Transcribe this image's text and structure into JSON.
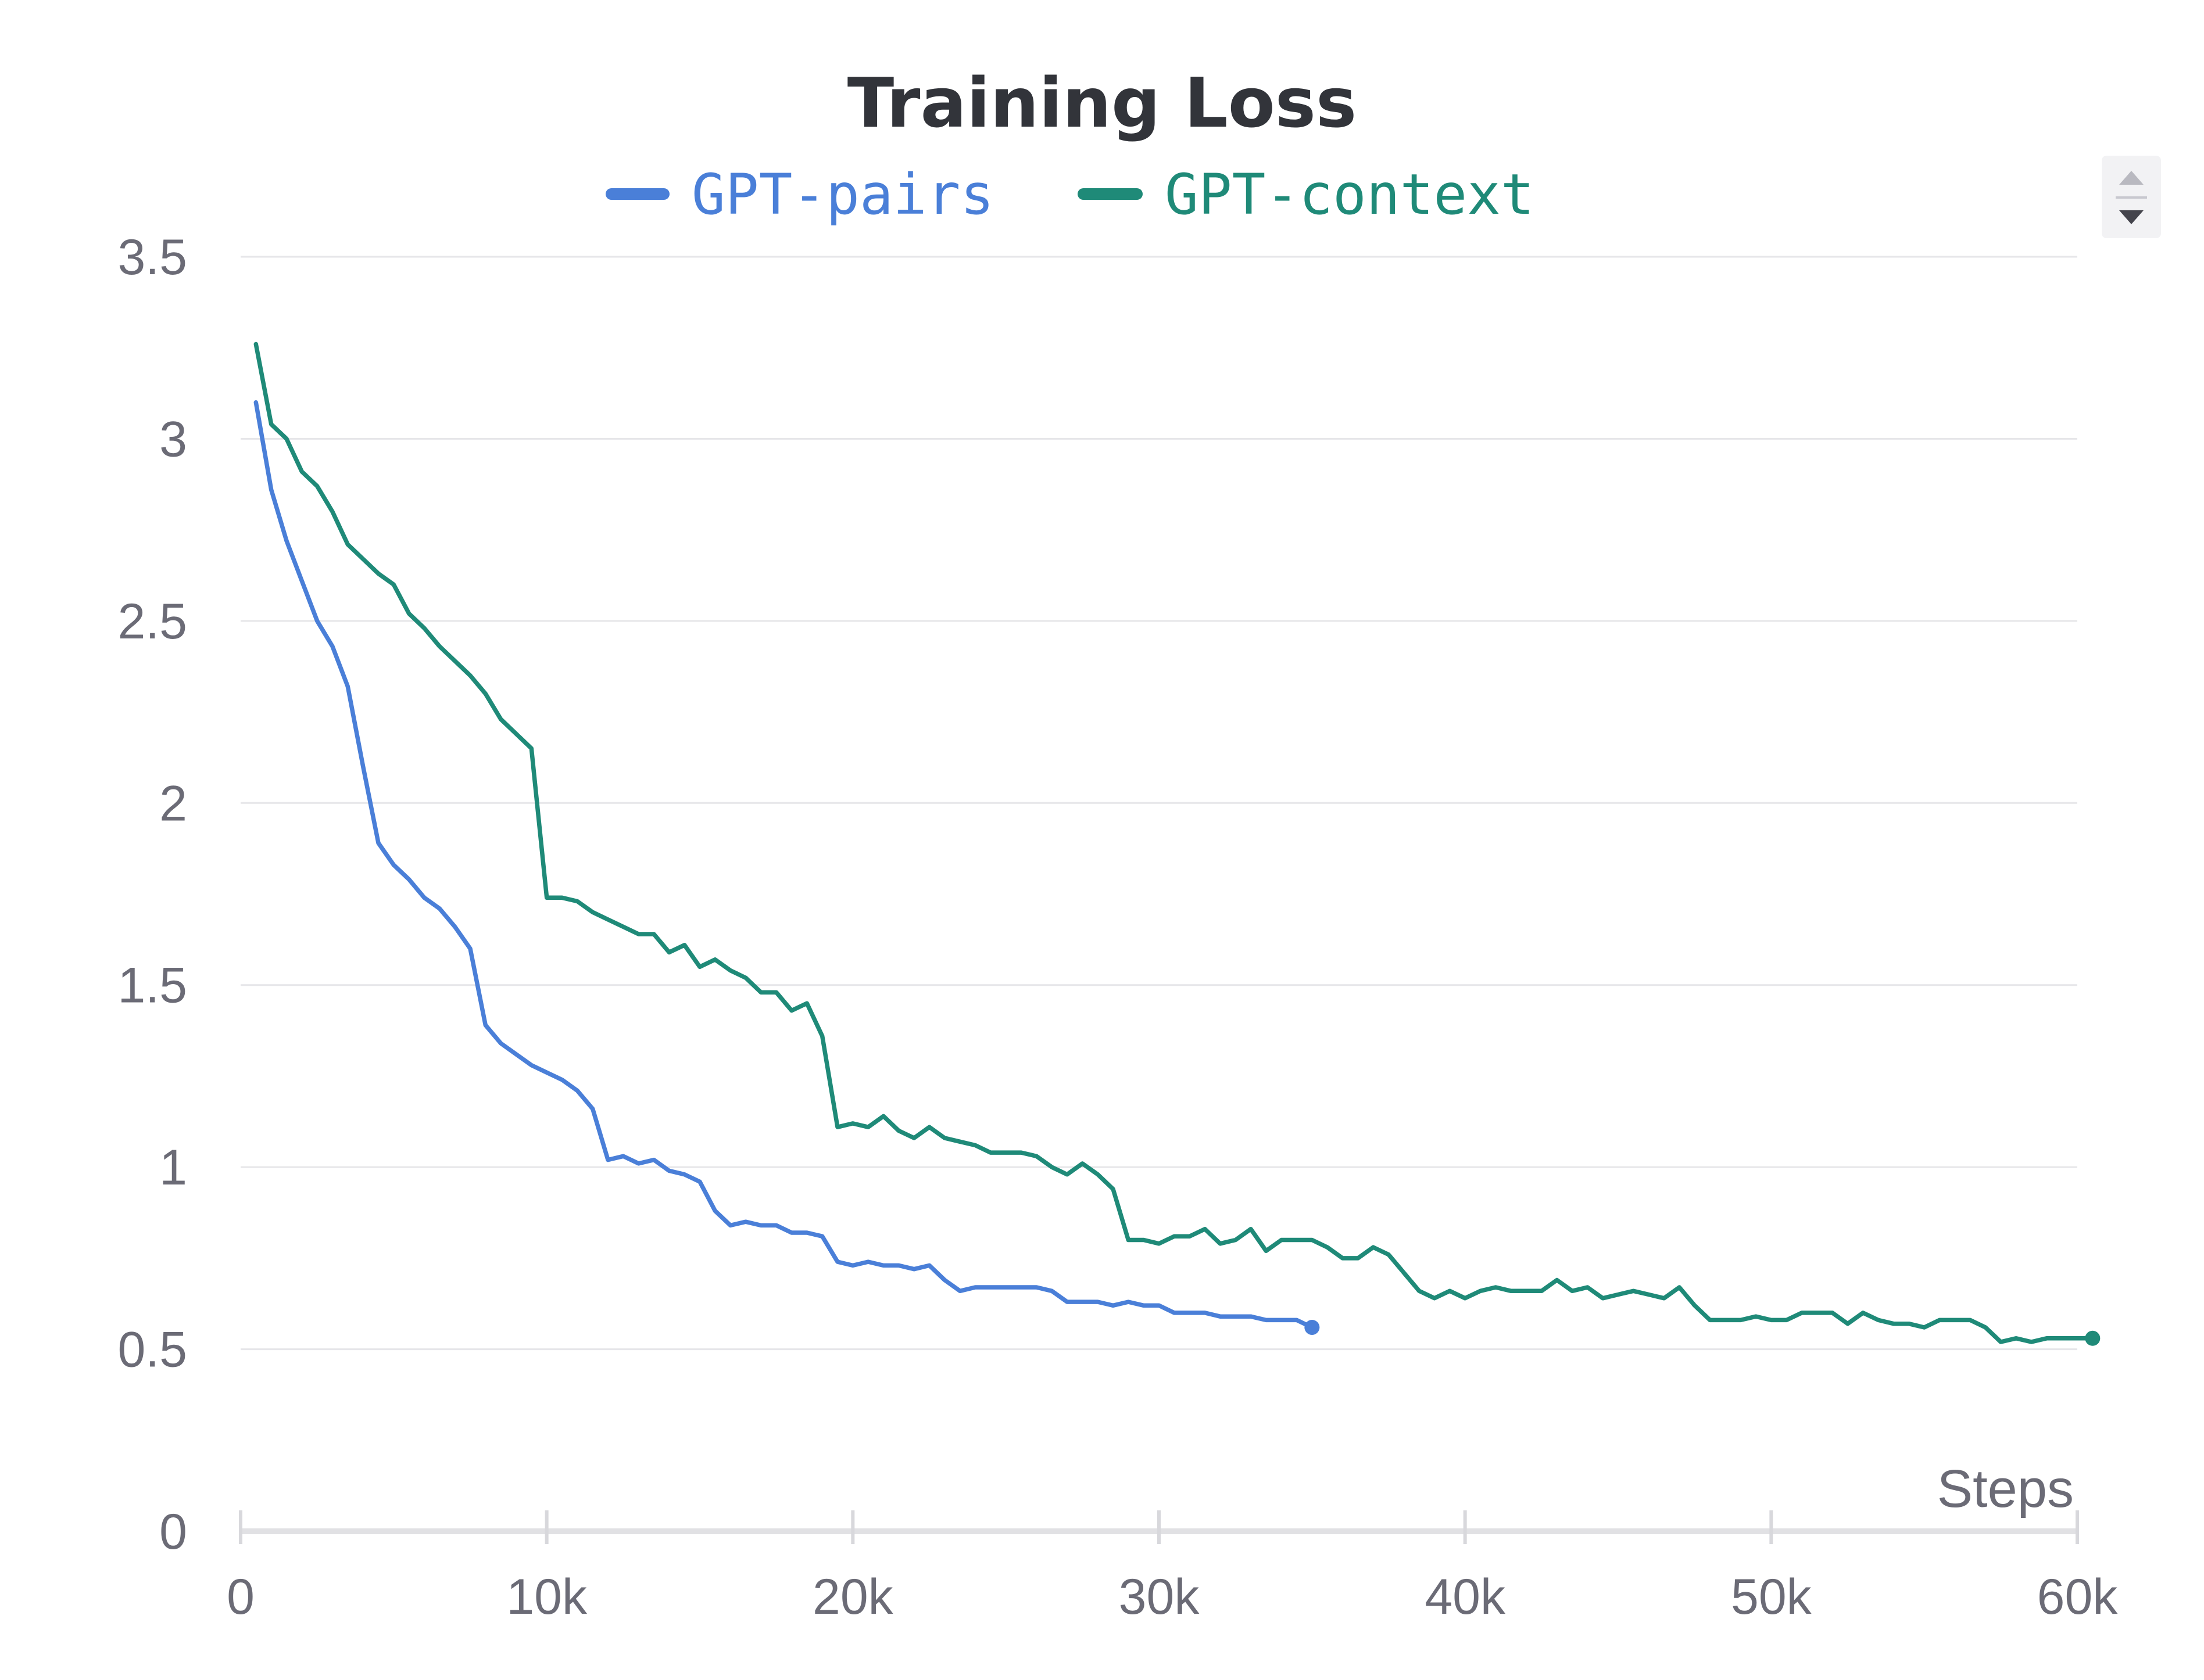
{
  "chart_data": {
    "type": "line",
    "title": "Training Loss",
    "xlabel": "Steps",
    "ylabel": "",
    "xlim": [
      0,
      60000
    ],
    "ylim": [
      0,
      3.5
    ],
    "x_ticks": [
      0,
      10000,
      20000,
      30000,
      40000,
      50000,
      60000
    ],
    "x_tick_labels": [
      "0",
      "10k",
      "20k",
      "30k",
      "40k",
      "50k",
      "60k"
    ],
    "y_ticks": [
      0,
      0.5,
      1,
      1.5,
      2,
      2.5,
      3,
      3.5
    ],
    "y_tick_labels": [
      "0",
      "0.5",
      "1",
      "1.5",
      "2",
      "2.5",
      "3",
      "3.5"
    ],
    "grid": true,
    "legend_position": "top-center",
    "series": [
      {
        "name": "GPT-pairs",
        "color": "#4a7fd8",
        "x": [
          500,
          1000,
          1500,
          2000,
          2500,
          3000,
          3500,
          4000,
          4500,
          5000,
          5500,
          6000,
          6500,
          7000,
          7500,
          8000,
          8500,
          9000,
          9500,
          10000,
          10500,
          11000,
          11500,
          12000,
          12500,
          13000,
          13500,
          14000,
          14500,
          15000,
          15500,
          16000,
          16500,
          17000,
          17500,
          18000,
          18500,
          19000,
          19500,
          20000,
          20500,
          21000,
          21500,
          22000,
          22500,
          23000,
          23500,
          24000,
          24500,
          25000,
          25500,
          26000,
          26500,
          27000,
          27500,
          28000,
          28500,
          29000,
          29500,
          30000,
          30500,
          31000,
          31500,
          32000,
          32500,
          33000,
          33500,
          34000,
          34500,
          35000
        ],
        "y": [
          3.1,
          2.86,
          2.72,
          2.61,
          2.5,
          2.43,
          2.32,
          2.1,
          1.89,
          1.83,
          1.79,
          1.74,
          1.71,
          1.66,
          1.6,
          1.39,
          1.34,
          1.31,
          1.28,
          1.26,
          1.24,
          1.21,
          1.16,
          1.02,
          1.03,
          1.01,
          1.02,
          0.99,
          0.98,
          0.96,
          0.88,
          0.84,
          0.85,
          0.84,
          0.84,
          0.82,
          0.82,
          0.81,
          0.74,
          0.73,
          0.74,
          0.73,
          0.73,
          0.72,
          0.73,
          0.69,
          0.66,
          0.67,
          0.67,
          0.67,
          0.67,
          0.67,
          0.66,
          0.63,
          0.63,
          0.63,
          0.62,
          0.63,
          0.62,
          0.62,
          0.6,
          0.6,
          0.6,
          0.59,
          0.59,
          0.59,
          0.58,
          0.58,
          0.58,
          0.56
        ]
      },
      {
        "name": "GPT-context",
        "color": "#1f8a78",
        "x": [
          500,
          1000,
          1500,
          2000,
          2500,
          3000,
          3500,
          4000,
          4500,
          5000,
          5500,
          6000,
          6500,
          7000,
          7500,
          8000,
          8500,
          9000,
          9500,
          10000,
          10500,
          11000,
          11500,
          12000,
          12500,
          13000,
          13500,
          14000,
          14500,
          15000,
          15500,
          16000,
          16500,
          17000,
          17500,
          18000,
          18500,
          19000,
          19500,
          20000,
          20500,
          21000,
          21500,
          22000,
          22500,
          23000,
          23500,
          24000,
          24500,
          25000,
          25500,
          26000,
          26500,
          27000,
          27500,
          28000,
          28500,
          29000,
          29500,
          30000,
          30500,
          31000,
          31500,
          32000,
          32500,
          33000,
          33500,
          34000,
          34500,
          35000,
          35500,
          36000,
          36500,
          37000,
          37500,
          38000,
          38500,
          39000,
          39500,
          40000,
          40500,
          41000,
          41500,
          42000,
          42500,
          43000,
          43500,
          44000,
          44500,
          45000,
          45500,
          46000,
          46500,
          47000,
          47500,
          48000,
          48500,
          49000,
          49500,
          50000,
          50500,
          51000,
          51500,
          52000,
          52500,
          53000,
          53500,
          54000,
          54500,
          55000,
          55500,
          56000,
          56500,
          57000,
          57500,
          58000,
          58500,
          59000,
          59500,
          60000,
          60500
        ],
        "y": [
          3.26,
          3.04,
          3.0,
          2.91,
          2.87,
          2.8,
          2.71,
          2.67,
          2.63,
          2.6,
          2.52,
          2.48,
          2.43,
          2.39,
          2.35,
          2.3,
          2.23,
          2.19,
          2.15,
          1.74,
          1.74,
          1.73,
          1.7,
          1.68,
          1.66,
          1.64,
          1.64,
          1.59,
          1.61,
          1.55,
          1.57,
          1.54,
          1.52,
          1.48,
          1.48,
          1.43,
          1.45,
          1.36,
          1.11,
          1.12,
          1.11,
          1.14,
          1.1,
          1.08,
          1.11,
          1.08,
          1.07,
          1.06,
          1.04,
          1.04,
          1.04,
          1.03,
          1.0,
          0.98,
          1.01,
          0.98,
          0.94,
          0.8,
          0.8,
          0.79,
          0.81,
          0.81,
          0.83,
          0.79,
          0.8,
          0.83,
          0.77,
          0.8,
          0.8,
          0.8,
          0.78,
          0.75,
          0.75,
          0.78,
          0.76,
          0.71,
          0.66,
          0.64,
          0.66,
          0.64,
          0.66,
          0.67,
          0.66,
          0.66,
          0.66,
          0.69,
          0.66,
          0.67,
          0.64,
          0.65,
          0.66,
          0.65,
          0.64,
          0.67,
          0.62,
          0.58,
          0.58,
          0.58,
          0.59,
          0.58,
          0.58,
          0.6,
          0.6,
          0.6,
          0.57,
          0.6,
          0.58,
          0.57,
          0.57,
          0.56,
          0.58,
          0.58,
          0.58,
          0.56,
          0.52,
          0.53,
          0.52,
          0.53,
          0.53,
          0.53,
          0.53
        ]
      }
    ]
  },
  "controls": {
    "scroll_up_icon": "triangle-up-icon",
    "scroll_down_icon": "triangle-down-icon"
  }
}
